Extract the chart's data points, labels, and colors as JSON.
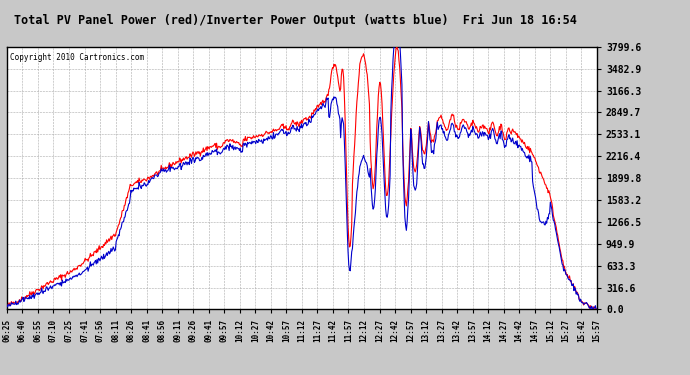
{
  "title": "Total PV Panel Power (red)/Inverter Power Output (watts blue)  Fri Jun 18 16:54",
  "copyright": "Copyright 2010 Cartronics.com",
  "bg_color": "#C8C8C8",
  "plot_bg_color": "#FFFFFF",
  "grid_color": "#AAAAAA",
  "line1_color": "#FF0000",
  "line2_color": "#0000CC",
  "yticks": [
    0.0,
    316.6,
    633.3,
    949.9,
    1266.5,
    1583.2,
    1899.8,
    2216.4,
    2533.1,
    2849.7,
    3166.3,
    3482.9,
    3799.6
  ],
  "ymax": 3799.6,
  "ymin": 0.0,
  "x_labels": [
    "06:25",
    "06:40",
    "06:55",
    "07:10",
    "07:25",
    "07:41",
    "07:56",
    "08:11",
    "08:26",
    "08:41",
    "08:56",
    "09:11",
    "09:26",
    "09:41",
    "09:57",
    "10:12",
    "10:27",
    "10:42",
    "10:57",
    "11:12",
    "11:27",
    "11:42",
    "11:57",
    "12:12",
    "12:27",
    "12:42",
    "12:57",
    "13:12",
    "13:27",
    "13:42",
    "13:57",
    "14:12",
    "14:27",
    "14:42",
    "14:57",
    "15:12",
    "15:27",
    "15:42",
    "15:57"
  ]
}
